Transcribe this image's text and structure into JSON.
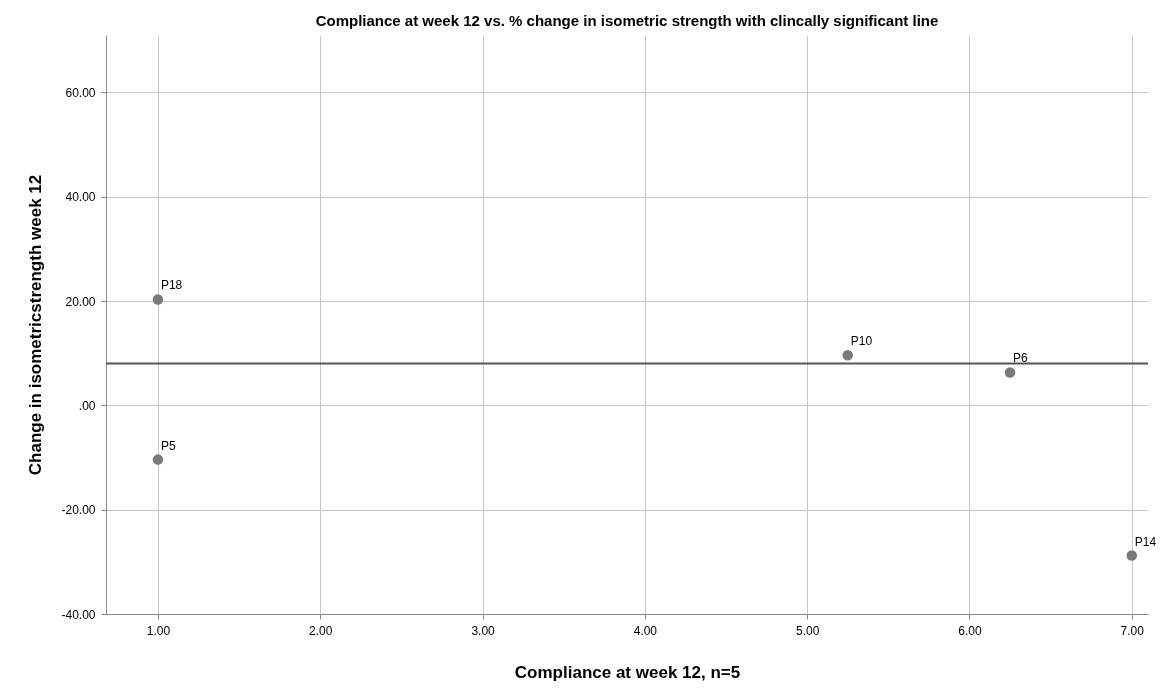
{
  "chart_data": {
    "type": "scatter",
    "title": "Compliance at week 12 vs. % change in isometric strength with clincally significant line",
    "xlabel": "Compliance at week 12, n=5",
    "ylabel": "Change in isometricstrength week 12",
    "x": [
      1.0,
      1.0,
      5.25,
      6.25,
      7.0
    ],
    "series": [
      {
        "color": "#7a7a7a",
        "values": [
          20.3,
          -10.4,
          9.6,
          6.3,
          -28.8
        ]
      }
    ],
    "xlim": [
      0.68,
      7.1
    ],
    "ylim": [
      -40,
      71
    ],
    "xticks": [
      {
        "value": 1,
        "label": "1.00"
      },
      {
        "value": 2,
        "label": "2.00"
      },
      {
        "value": 3,
        "label": "3.00"
      },
      {
        "value": 4,
        "label": "4.00"
      },
      {
        "value": 5,
        "label": "5.00"
      },
      {
        "value": 6,
        "label": "6.00"
      },
      {
        "value": 7,
        "label": "7.00"
      }
    ],
    "yticks": [
      {
        "value": -40,
        "label": "-40.00"
      },
      {
        "value": -20,
        "label": "-20.00"
      },
      {
        "value": 0,
        "label": ".00"
      },
      {
        "value": 20,
        "label": "20.00"
      },
      {
        "value": 40,
        "label": "40.00"
      },
      {
        "value": 60,
        "label": "60.00"
      }
    ],
    "ref_lines": [
      {
        "axis": "y",
        "value": 8.0,
        "color": "#555555"
      }
    ],
    "annotations": [
      {
        "text": "P18",
        "x": 1.0,
        "y": 20.3
      },
      {
        "text": "P5",
        "x": 1.0,
        "y": -10.4
      },
      {
        "text": "P10",
        "x": 5.25,
        "y": 9.6
      },
      {
        "text": "P6",
        "x": 6.25,
        "y": 6.3
      },
      {
        "text": "P14",
        "x": 7.0,
        "y": -28.8
      }
    ],
    "grid": true,
    "marker": "circle"
  }
}
